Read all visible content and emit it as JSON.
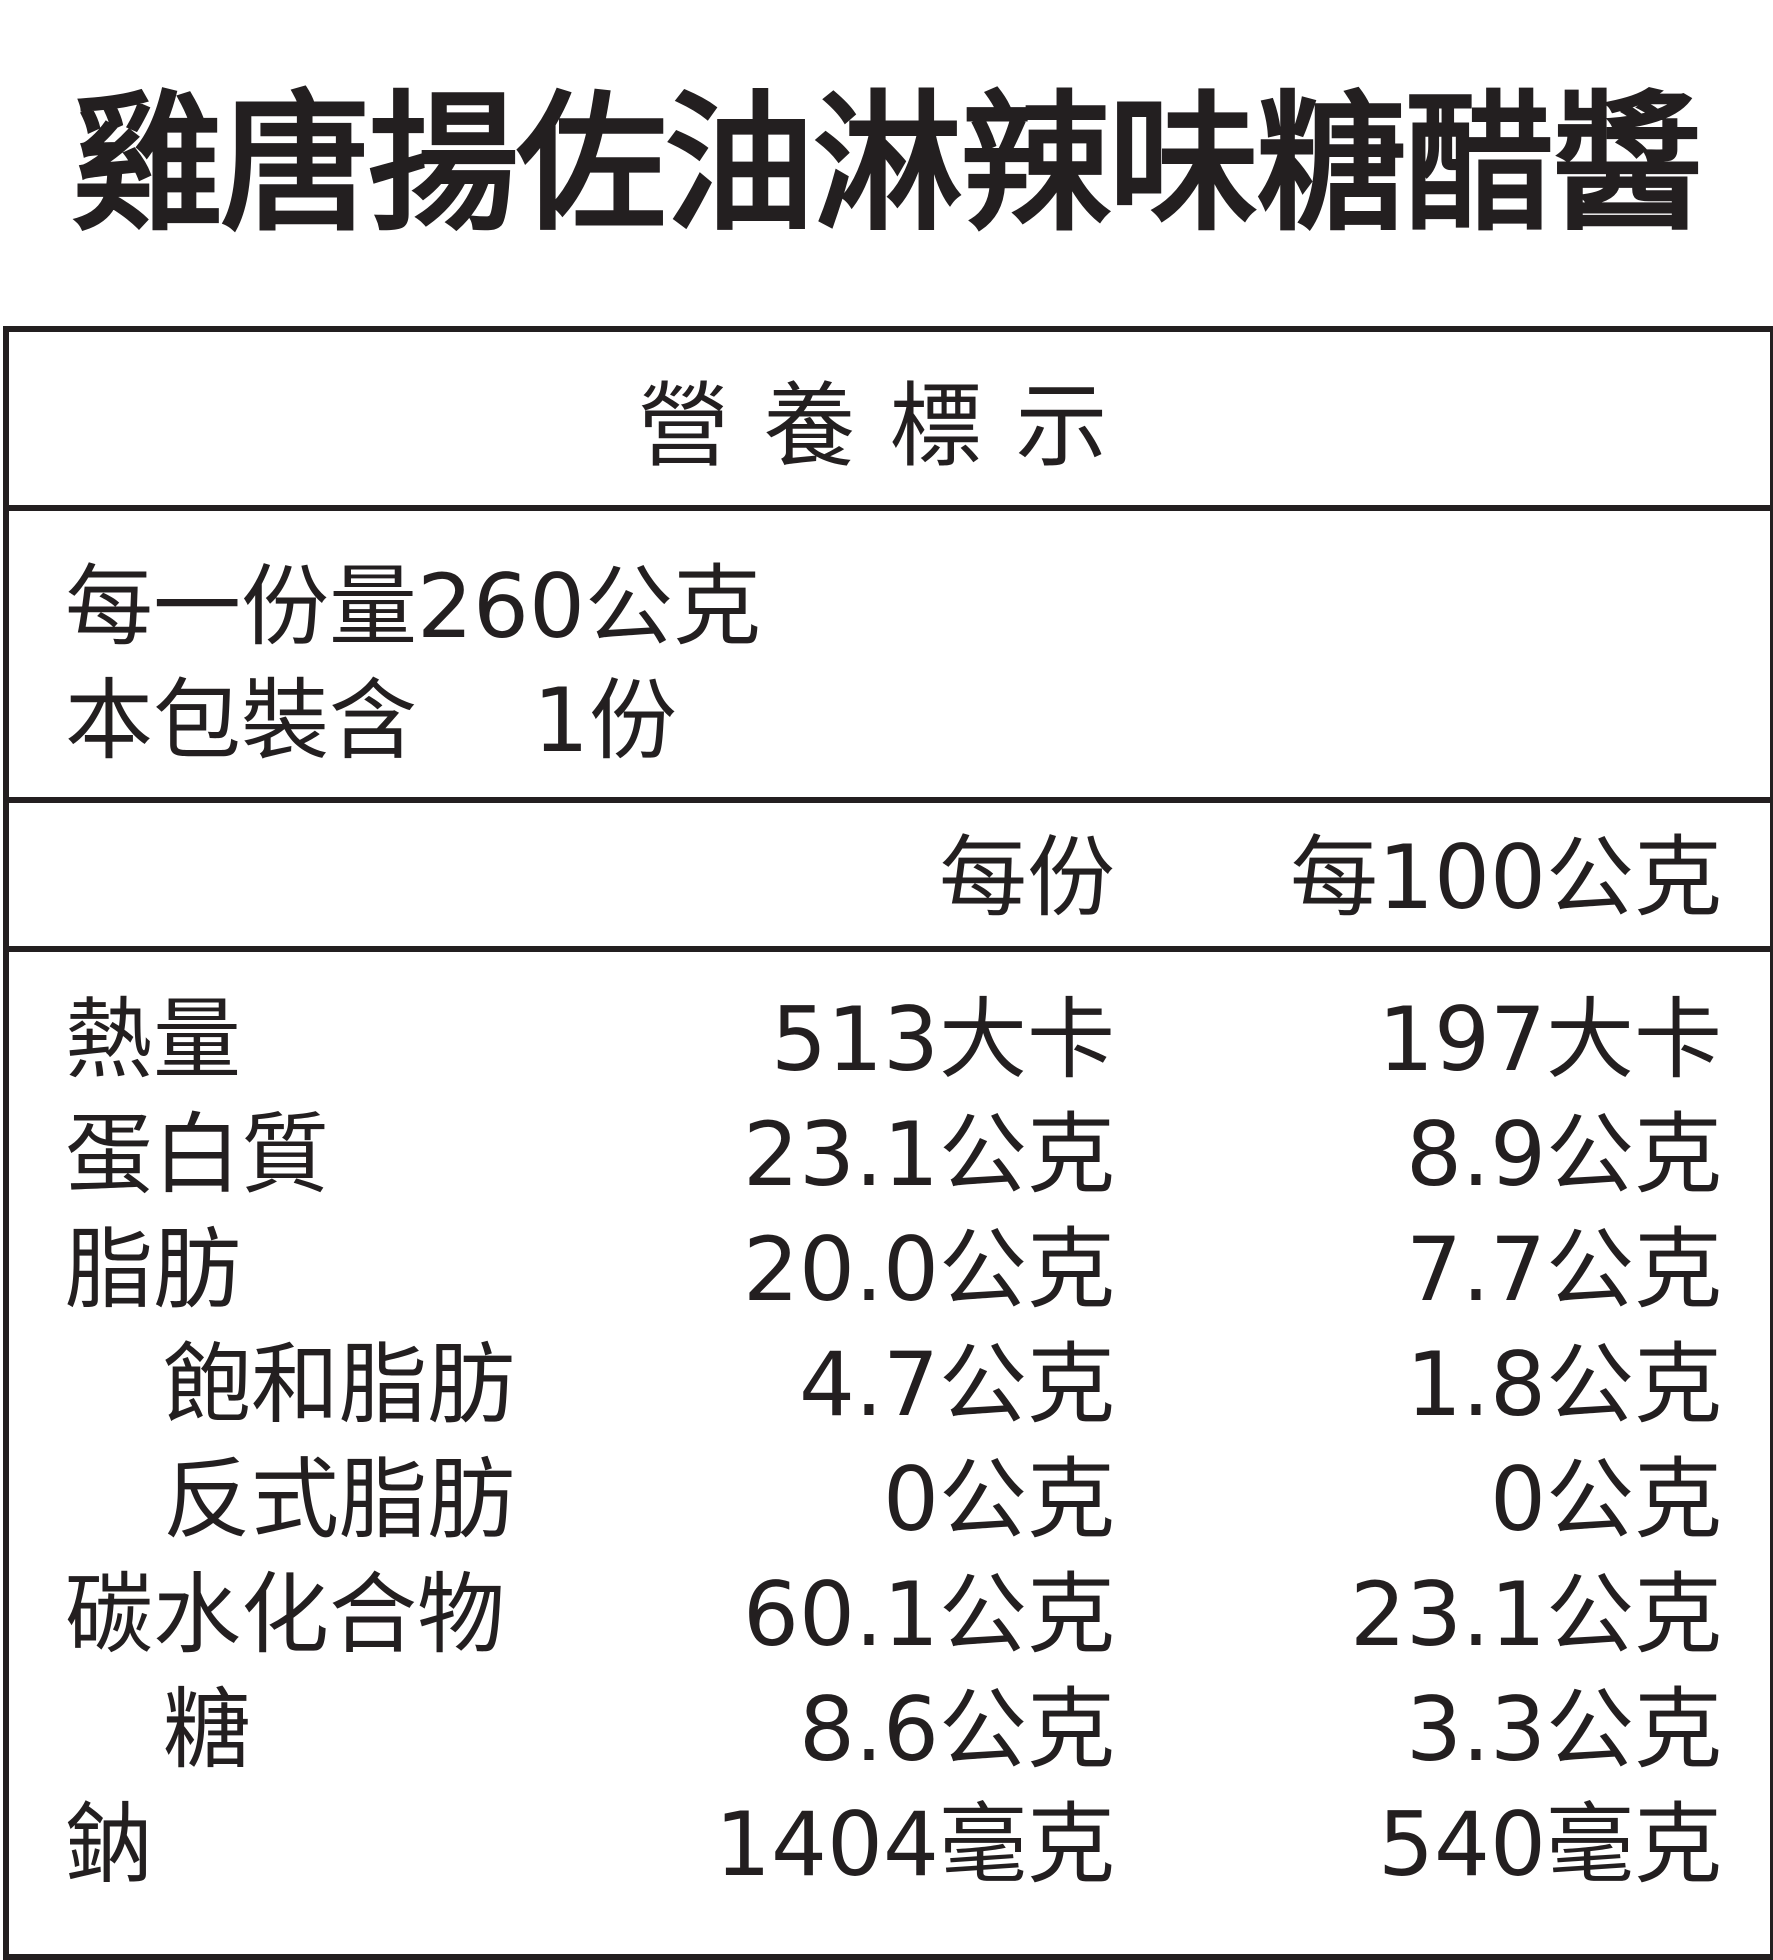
{
  "title": "雞唐揚佐油淋辣味糖醋醬",
  "label": {
    "heading": "營養標示",
    "serving_size": "每一份量260公克",
    "servings_per_package": "本包裝含　 1份",
    "columns": [
      "每份",
      "每100公克"
    ],
    "rows": [
      {
        "name": "熱量",
        "indent": false,
        "per_serving": "513大卡",
        "per_100g": "197大卡"
      },
      {
        "name": "蛋白質",
        "indent": false,
        "per_serving": "23.1公克",
        "per_100g": "8.9公克"
      },
      {
        "name": "脂肪",
        "indent": false,
        "per_serving": "20.0公克",
        "per_100g": "7.7公克"
      },
      {
        "name": "飽和脂肪",
        "indent": true,
        "per_serving": "4.7公克",
        "per_100g": "1.8公克"
      },
      {
        "name": "反式脂肪",
        "indent": true,
        "per_serving": "0公克",
        "per_100g": "0公克"
      },
      {
        "name": "碳水化合物",
        "indent": false,
        "per_serving": "60.1公克",
        "per_100g": "23.1公克"
      },
      {
        "name": "糖",
        "indent": true,
        "per_serving": "8.6公克",
        "per_100g": "3.3公克"
      },
      {
        "name": "鈉",
        "indent": false,
        "per_serving": "1404毫克",
        "per_100g": "540毫克"
      }
    ]
  }
}
